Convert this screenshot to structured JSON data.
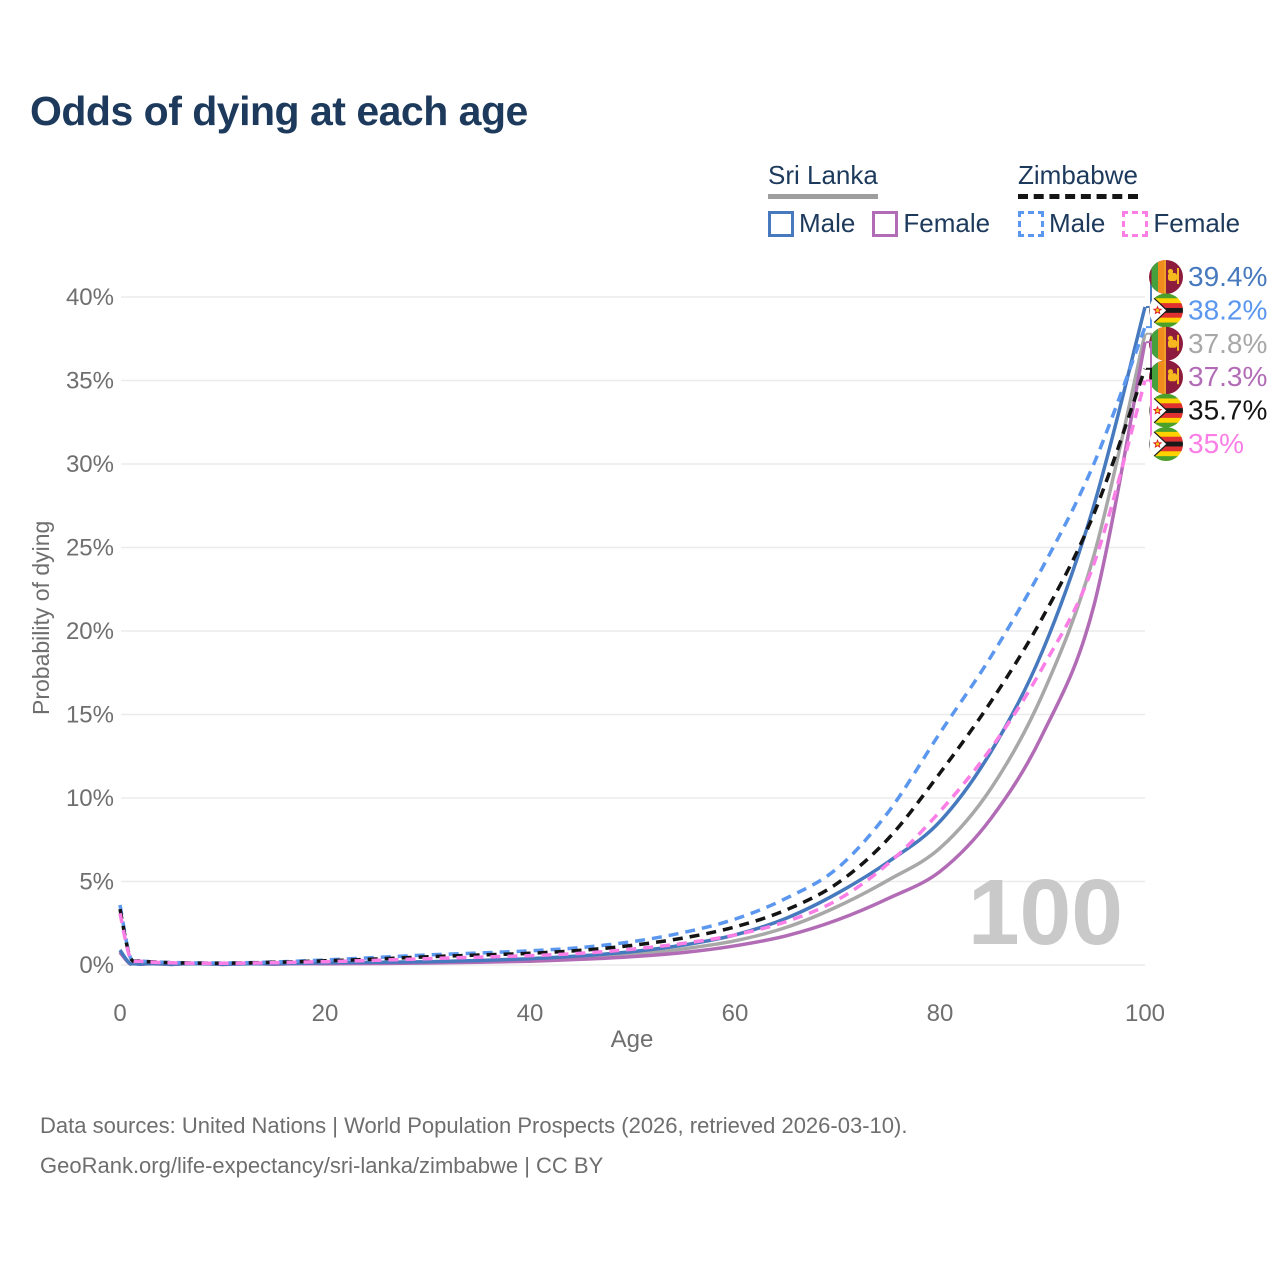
{
  "title": "Odds of dying at each age",
  "watermark": "100",
  "legend": {
    "sri_lanka": {
      "title": "Sri Lanka",
      "male": "Male",
      "female": "Female"
    },
    "zimbabwe": {
      "title": "Zimbabwe",
      "male": "Male",
      "female": "Female"
    }
  },
  "axes": {
    "x_label": "Age",
    "y_label": "Probability of dying",
    "x_ticks": [
      0,
      20,
      40,
      60,
      80,
      100
    ],
    "y_ticks": [
      "0%",
      "5%",
      "10%",
      "15%",
      "20%",
      "25%",
      "30%",
      "35%",
      "40%"
    ]
  },
  "colors": {
    "title_navy": "#1d3a5c",
    "axis_gray": "#6f6f6f",
    "gridline": "#ebebeb",
    "watermark": "#c9c9c9",
    "sri_lanka_male": "#4679bd",
    "sri_lanka_female": "#b26cb6",
    "sri_lanka_overall": "#a8a8a8",
    "zimbabwe_male": "#5b97ef",
    "zimbabwe_overall": "#141414",
    "zimbabwe_female": "#fa7ee6"
  },
  "footer": {
    "line1": "Data sources: United Nations | World Population Prospects (2026, retrieved 2026-03-10).",
    "line2": "GeoRank.org/life-expectancy/sri-lanka/zimbabwe | CC BY"
  },
  "chart_data": {
    "type": "line",
    "title": "Odds of dying at each age",
    "xlabel": "Age",
    "ylabel": "Probability of dying",
    "xlim": [
      0,
      100
    ],
    "ylim": [
      0,
      40
    ],
    "grid": "horizontal",
    "x": [
      0,
      1,
      2,
      5,
      10,
      15,
      20,
      25,
      30,
      35,
      40,
      45,
      50,
      55,
      60,
      65,
      70,
      75,
      80,
      85,
      90,
      95,
      100
    ],
    "series": [
      {
        "name": "Sri Lanka overall",
        "country": "sri-lanka",
        "dash": "solid",
        "color": "#a8a8a8",
        "values": [
          0.82,
          0.065,
          0.045,
          0.035,
          0.035,
          0.065,
          0.1,
          0.12,
          0.16,
          0.21,
          0.3,
          0.44,
          0.64,
          0.97,
          1.45,
          2.25,
          3.5,
          5.1,
          7.0,
          10.6,
          16.2,
          24.5,
          37.8
        ]
      },
      {
        "name": "Sri Lanka Female",
        "country": "sri-lanka",
        "dash": "solid",
        "color": "#b26cb6",
        "values": [
          0.75,
          0.06,
          0.04,
          0.03,
          0.03,
          0.05,
          0.07,
          0.09,
          0.12,
          0.16,
          0.23,
          0.34,
          0.5,
          0.75,
          1.15,
          1.75,
          2.7,
          4.0,
          5.6,
          8.8,
          13.8,
          21.5,
          37.3
        ]
      },
      {
        "name": "Sri Lanka Male",
        "country": "sri-lanka",
        "dash": "solid",
        "color": "#4679bd",
        "values": [
          0.9,
          0.07,
          0.05,
          0.04,
          0.04,
          0.08,
          0.13,
          0.16,
          0.2,
          0.27,
          0.38,
          0.55,
          0.8,
          1.2,
          1.8,
          2.8,
          4.3,
          6.2,
          8.6,
          12.8,
          18.8,
          27.5,
          39.4
        ]
      },
      {
        "name": "Zimbabwe Male",
        "country": "zimbabwe",
        "dash": "dashed",
        "color": "#5b97ef",
        "values": [
          3.6,
          0.45,
          0.25,
          0.15,
          0.12,
          0.18,
          0.3,
          0.45,
          0.6,
          0.72,
          0.85,
          1.05,
          1.4,
          1.95,
          2.75,
          4.0,
          5.8,
          9.2,
          13.9,
          18.5,
          23.8,
          30.0,
          38.2
        ]
      },
      {
        "name": "Zimbabwe overall",
        "country": "zimbabwe",
        "dash": "dashed",
        "color": "#141414",
        "values": [
          3.35,
          0.42,
          0.24,
          0.14,
          0.11,
          0.16,
          0.25,
          0.36,
          0.49,
          0.6,
          0.7,
          0.88,
          1.18,
          1.62,
          2.28,
          3.3,
          4.9,
          7.6,
          11.5,
          15.8,
          20.8,
          27.0,
          35.7
        ]
      },
      {
        "name": "Zimbabwe Female",
        "country": "zimbabwe",
        "dash": "dashed",
        "color": "#fa7ee6",
        "values": [
          3.1,
          0.4,
          0.22,
          0.13,
          0.1,
          0.14,
          0.2,
          0.28,
          0.38,
          0.47,
          0.56,
          0.7,
          0.95,
          1.3,
          1.8,
          2.6,
          3.9,
          6.1,
          9.2,
          13.0,
          17.8,
          24.0,
          35.0
        ]
      }
    ],
    "end_labels": [
      {
        "flag": "sri-lanka",
        "text": "39.4%",
        "value": 39.4,
        "color": "#4679bd"
      },
      {
        "flag": "zimbabwe",
        "text": "38.2%",
        "value": 38.2,
        "color": "#5b97ef"
      },
      {
        "flag": "sri-lanka",
        "text": "37.8%",
        "value": 37.8,
        "color": "#a8a8a8"
      },
      {
        "flag": "sri-lanka",
        "text": "37.3%",
        "value": 37.3,
        "color": "#b26cb6"
      },
      {
        "flag": "zimbabwe",
        "text": "35.7%",
        "value": 35.7,
        "color": "#141414"
      },
      {
        "flag": "zimbabwe",
        "text": "35%",
        "value": 35.0,
        "color": "#fa7ee6"
      }
    ]
  }
}
